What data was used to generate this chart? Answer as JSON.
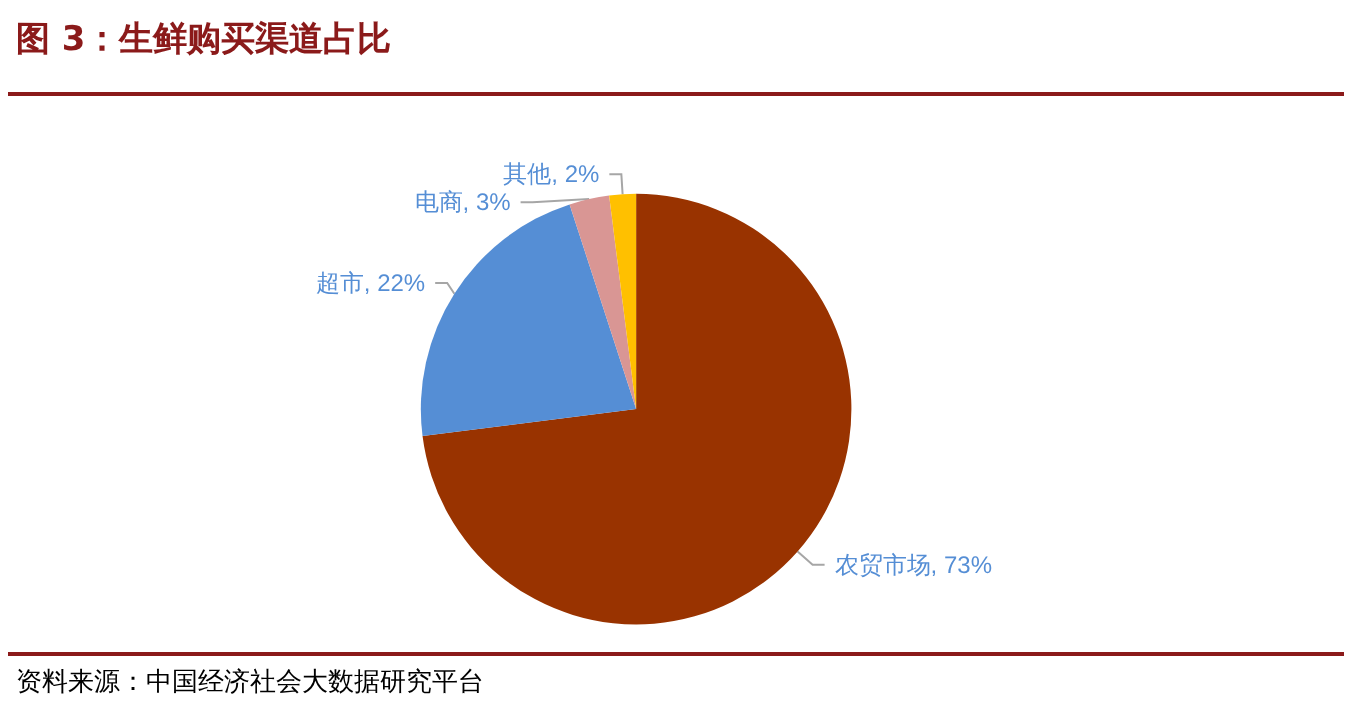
{
  "chart_data": {
    "type": "pie",
    "title": "图 3：生鲜购买渠道占比",
    "categories": [
      "农贸市场",
      "超市",
      "电商",
      "其他"
    ],
    "values": [
      73,
      22,
      3,
      2
    ],
    "value_labels": [
      "73%",
      "22%",
      "3%",
      "2%"
    ],
    "colors": [
      "#993300",
      "#558ed5",
      "#d99694",
      "#ffc000"
    ],
    "legend": false,
    "annotations": [
      "资料来源：中国经济社会大数据研究平台"
    ]
  }
}
